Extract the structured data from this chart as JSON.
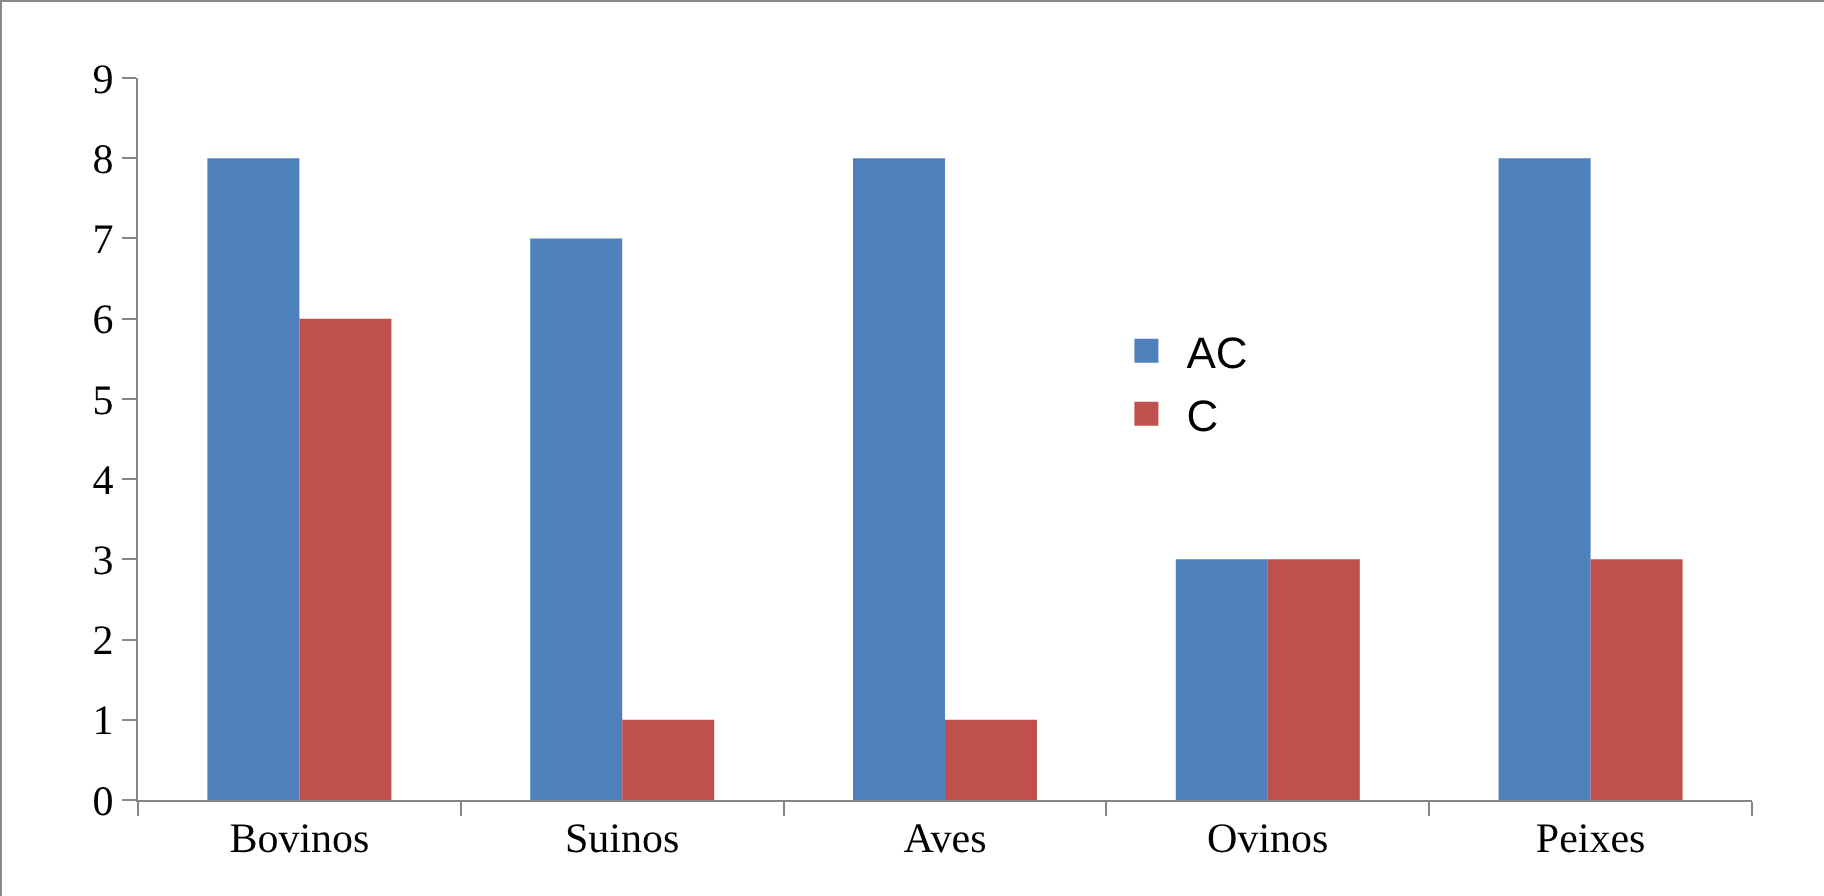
{
  "chart_data": {
    "type": "bar",
    "categories": [
      "Bovinos",
      "Suinos",
      "Aves",
      "Ovinos",
      "Peixes"
    ],
    "series": [
      {
        "name": "AC",
        "color": "#4f81bd",
        "values": [
          8,
          7,
          8,
          3,
          8
        ]
      },
      {
        "name": "C",
        "color": "#c0504d",
        "values": [
          6,
          1,
          1,
          3,
          3
        ]
      }
    ],
    "ylim": [
      0,
      9
    ],
    "yticks": [
      0,
      1,
      2,
      3,
      4,
      5,
      6,
      7,
      8,
      9
    ],
    "grid": false,
    "legend": "right"
  }
}
